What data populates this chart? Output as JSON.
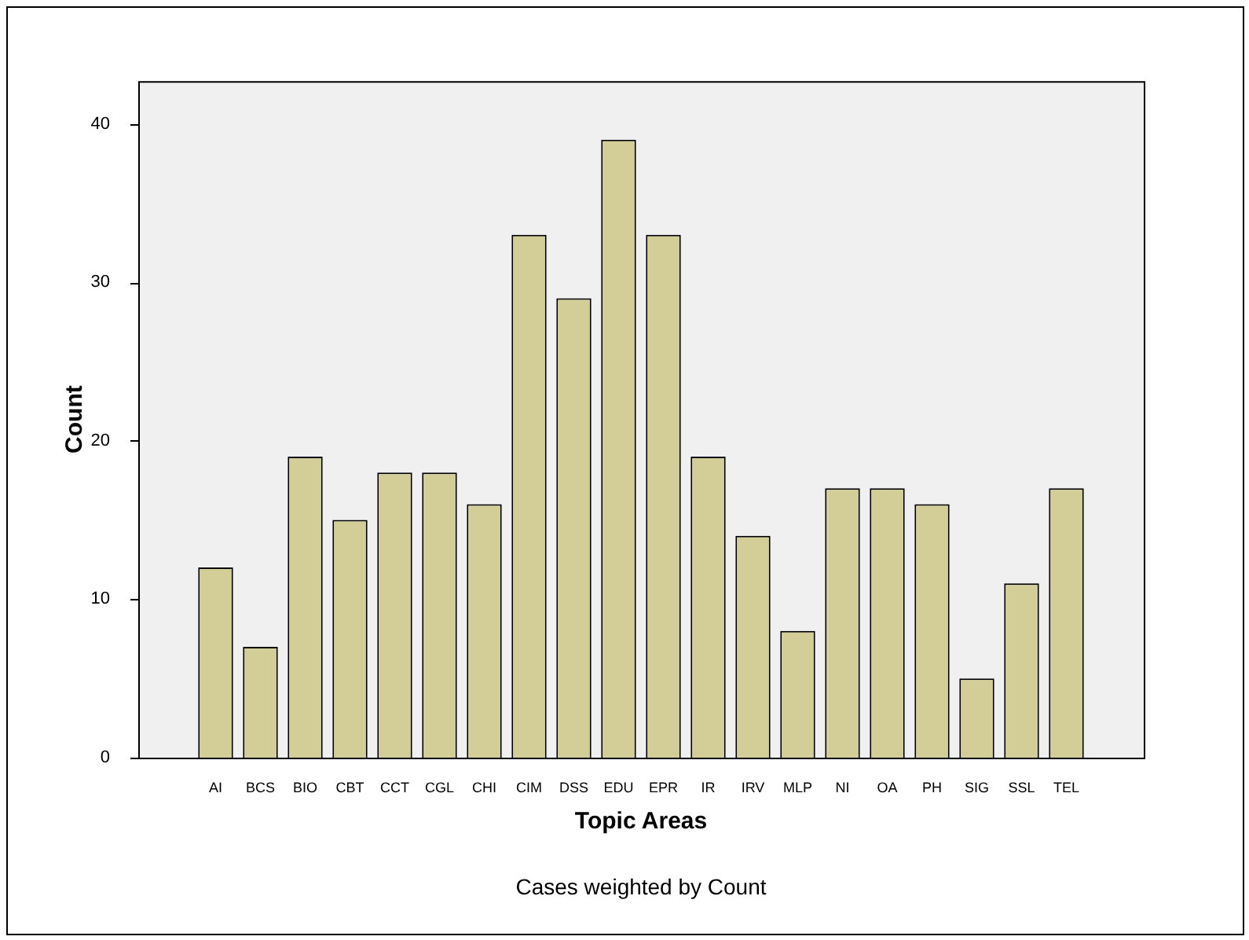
{
  "chart_data": {
    "type": "bar",
    "xlabel": "Topic Areas",
    "ylabel": "Count",
    "categories": [
      "AI",
      "BCS",
      "BIO",
      "CBT",
      "CCT",
      "CGL",
      "CHI",
      "CIM",
      "DSS",
      "EDU",
      "EPR",
      "IR",
      "IRV",
      "MLP",
      "NI",
      "OA",
      "PH",
      "SIG",
      "SSL",
      "TEL"
    ],
    "values": [
      12,
      7,
      19,
      15,
      18,
      18,
      16,
      33,
      29,
      39,
      33,
      19,
      14,
      8,
      17,
      17,
      16,
      5,
      11,
      17
    ],
    "color": "#d3ce98",
    "ylim": [
      0,
      42.7
    ],
    "yticks": [
      0,
      10,
      20,
      30,
      40
    ],
    "grid": false,
    "legend": false,
    "annotations": [
      "Cases weighted by Count"
    ]
  }
}
